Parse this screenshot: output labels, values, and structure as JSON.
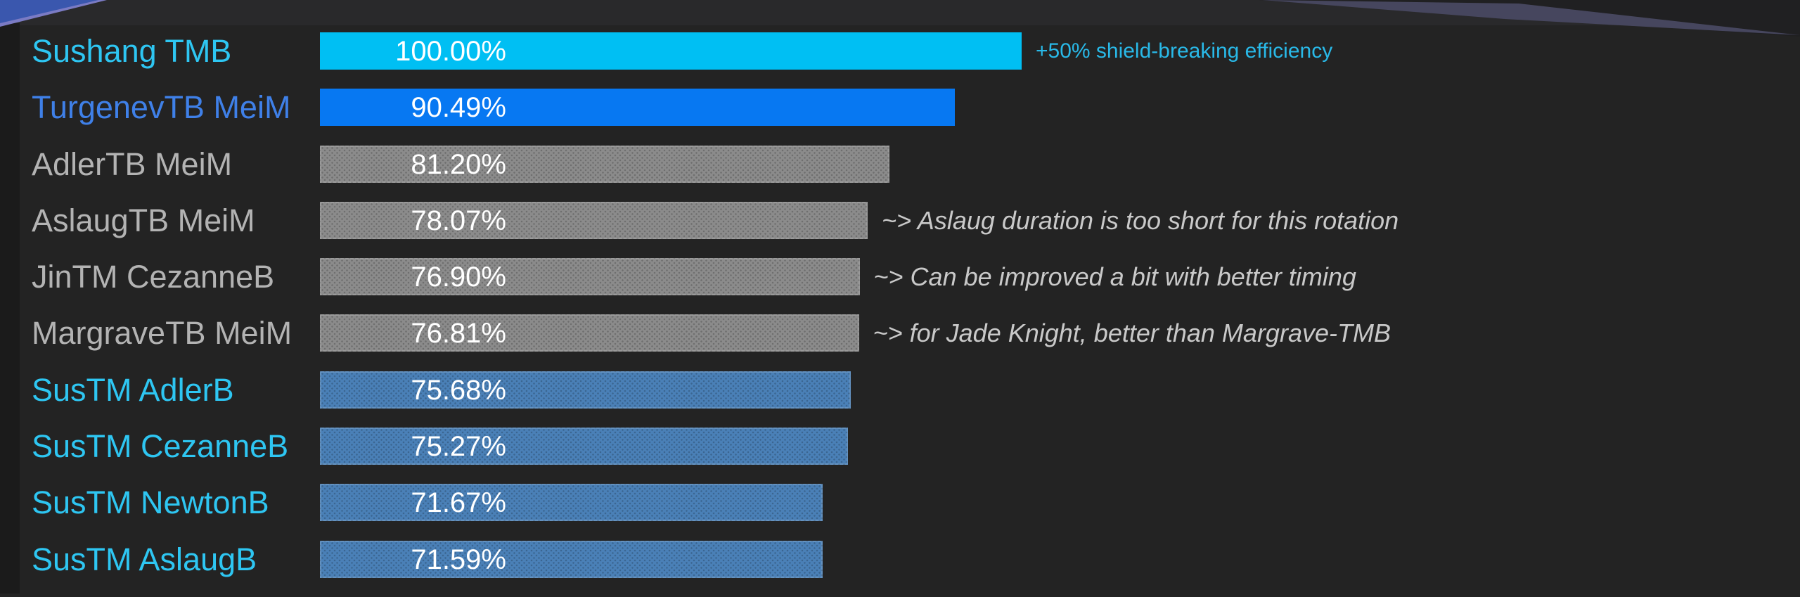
{
  "theme": {
    "background": "#232323",
    "top_band": "#29292B",
    "left_gutter": "#1B1B1B",
    "corner_triangle": "#202022",
    "accent_triangle_blue": "#3A57AE",
    "accent_triangle_purple_edge": "#7B7BC4",
    "slate_wedge": "#46465E",
    "value_text": "#FFFFFF"
  },
  "chart_data": {
    "type": "bar",
    "orientation": "horizontal",
    "unit": "%",
    "xlim": [
      0,
      100
    ],
    "grid": false,
    "legend": false,
    "title": "",
    "rows": [
      {
        "label": "Sushang TMB",
        "label_color": "#2EC6F2",
        "value": 100.0,
        "value_label": "100.00%",
        "bar_color": "#00BFF3",
        "bar_pattern": false,
        "annotation": {
          "text": "+50% shield-breaking efficiency",
          "color": "#29B9E8",
          "italic": false,
          "small": true
        }
      },
      {
        "label": "TurgenevTB MeiM",
        "label_color": "#3F80E8",
        "value": 90.49,
        "value_label": "90.49%",
        "bar_color": "#0778F2",
        "bar_pattern": false
      },
      {
        "label": "AdlerTB MeiM",
        "label_color": "#B3B3B3",
        "value": 81.2,
        "value_label": "81.20%",
        "bar_color": "#8B8B8B",
        "bar_pattern": true
      },
      {
        "label": "AslaugTB MeiM",
        "label_color": "#B3B3B3",
        "value": 78.07,
        "value_label": "78.07%",
        "bar_color": "#8B8B8B",
        "bar_pattern": true,
        "annotation": {
          "text": "~> Aslaug duration is too short for this rotation",
          "color": "#C9C9C9",
          "italic": true,
          "small": false
        }
      },
      {
        "label": "JinTM CezanneB",
        "label_color": "#B3B3B3",
        "value": 76.9,
        "value_label": "76.90%",
        "bar_color": "#8B8B8B",
        "bar_pattern": true,
        "annotation": {
          "text": "~> Can be improved a bit with better timing",
          "color": "#C9C9C9",
          "italic": true,
          "small": false
        }
      },
      {
        "label": "MargraveTB MeiM",
        "label_color": "#B3B3B3",
        "value": 76.81,
        "value_label": "76.81%",
        "bar_color": "#8B8B8B",
        "bar_pattern": true,
        "annotation": {
          "text": "~> for Jade Knight, better than Margrave-TMB",
          "color": "#C9C9C9",
          "italic": true,
          "small": false
        }
      },
      {
        "label": "SusTM AdlerB",
        "label_color": "#2EC6F2",
        "value": 75.68,
        "value_label": "75.68%",
        "bar_color": "#4A80B7",
        "bar_pattern": true
      },
      {
        "label": "SusTM CezanneB",
        "label_color": "#2EC6F2",
        "value": 75.27,
        "value_label": "75.27%",
        "bar_color": "#4A80B7",
        "bar_pattern": true
      },
      {
        "label": "SusTM NewtonB",
        "label_color": "#2EC6F2",
        "value": 71.67,
        "value_label": "71.67%",
        "bar_color": "#4A80B7",
        "bar_pattern": true
      },
      {
        "label": "SusTM AslaugB",
        "label_color": "#2EC6F2",
        "value": 71.59,
        "value_label": "71.59%",
        "bar_color": "#4A80B7",
        "bar_pattern": true
      }
    ]
  }
}
